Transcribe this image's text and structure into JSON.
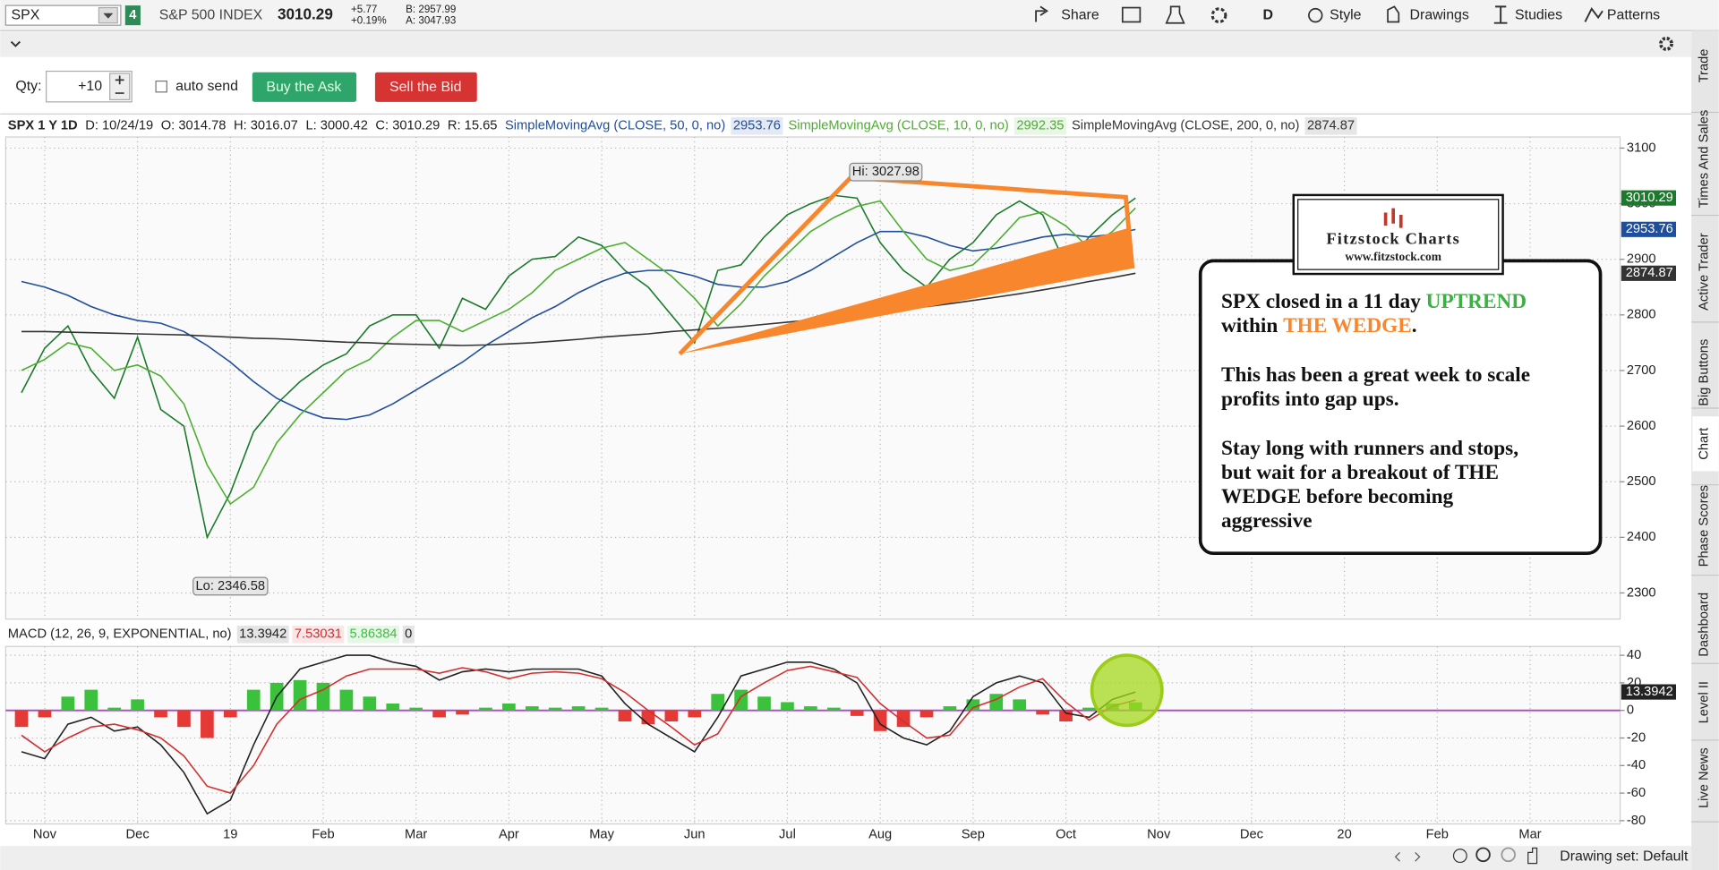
{
  "toolbar": {
    "symbol": "SPX",
    "link_badge": "4",
    "description": "S&P 500 INDEX",
    "last": "3010.29",
    "change": "+5.77",
    "change_pct": "+0.19%",
    "bid": "B: 2957.99",
    "ask": "A: 3047.93",
    "share": "Share",
    "aggregation": "D",
    "style": "Style",
    "drawings": "Drawings",
    "studies": "Studies",
    "patterns": "Patterns"
  },
  "order_bar": {
    "qty_label": "Qty:",
    "qty": "+10",
    "auto_send": "auto send",
    "buy": "Buy the Ask",
    "sell": "Sell the Bid"
  },
  "chart_data": [
    {
      "type": "line",
      "header": [
        "SPX 1 Y 1D",
        "D: 10/24/19",
        "O: 3014.78",
        "H: 3016.07",
        "L: 3000.42",
        "C: 3010.29",
        "R: 15.65"
      ],
      "high_label": "Hi: 3027.98",
      "low_label": "Lo: 2346.58",
      "x": [
        -0.25,
        0,
        0.25,
        0.5,
        0.75,
        1,
        1.25,
        1.5,
        1.75,
        2,
        2.25,
        2.5,
        2.75,
        3,
        3.25,
        3.5,
        3.75,
        4,
        4.25,
        4.5,
        4.75,
        5,
        5.25,
        5.5,
        5.75,
        6,
        6.25,
        6.5,
        6.75,
        7,
        7.25,
        7.5,
        7.75,
        8,
        8.25,
        8.5,
        8.75,
        9,
        9.25,
        9.5,
        9.75,
        10,
        10.25,
        10.5,
        10.75,
        11,
        11.25,
        11.5,
        11.75
      ],
      "xlim": [
        -0.42,
        16.97
      ],
      "xticks": [
        {
          "value": 0,
          "label": "Nov"
        },
        {
          "value": 1,
          "label": "Dec"
        },
        {
          "value": 2,
          "label": "19"
        },
        {
          "value": 3,
          "label": "Feb"
        },
        {
          "value": 4,
          "label": "Mar"
        },
        {
          "value": 5,
          "label": "Apr"
        },
        {
          "value": 6,
          "label": "May"
        },
        {
          "value": 7,
          "label": "Jun"
        },
        {
          "value": 8,
          "label": "Jul"
        },
        {
          "value": 9,
          "label": "Aug"
        },
        {
          "value": 10,
          "label": "Sep"
        },
        {
          "value": 11,
          "label": "Oct"
        },
        {
          "value": 12,
          "label": "Nov"
        },
        {
          "value": 13,
          "label": "Dec"
        },
        {
          "value": 14,
          "label": "20"
        },
        {
          "value": 15,
          "label": "Feb"
        },
        {
          "value": 16,
          "label": "Mar"
        }
      ],
      "ylim": [
        2253,
        3120
      ],
      "yticks": [
        3100,
        3000,
        2900,
        2800,
        2700,
        2600,
        2500,
        2400,
        2300
      ],
      "grid": true,
      "series": [
        {
          "color": "#1b7a2b",
          "axis_label": true,
          "values": [
            2660,
            2740,
            2780,
            2700,
            2650,
            2760,
            2630,
            2600,
            2400,
            2480,
            2590,
            2640,
            2680,
            2710,
            2730,
            2780,
            2800,
            2800,
            2740,
            2830,
            2810,
            2870,
            2900,
            2905,
            2940,
            2925,
            2880,
            2850,
            2800,
            2750,
            2880,
            2890,
            2940,
            2980,
            3000,
            3015,
            3010,
            2930,
            2880,
            2850,
            2900,
            2930,
            2980,
            3005,
            2980,
            2890,
            2940,
            2980,
            3010.29
          ]
        },
        {
          "name": "SimpleMovingAvg (CLOSE, 50, 0, no)",
          "color": "#1f4e9c",
          "axis_label": true,
          "values": [
            2860,
            2850,
            2835,
            2815,
            2800,
            2790,
            2785,
            2770,
            2745,
            2715,
            2680,
            2650,
            2630,
            2615,
            2612,
            2620,
            2640,
            2665,
            2690,
            2715,
            2745,
            2770,
            2795,
            2815,
            2840,
            2860,
            2875,
            2880,
            2880,
            2870,
            2855,
            2850,
            2850,
            2860,
            2880,
            2905,
            2930,
            2950,
            2950,
            2940,
            2925,
            2915,
            2920,
            2930,
            2940,
            2945,
            2940,
            2945,
            2953.76
          ]
        },
        {
          "name": "SimpleMovingAvg (CLOSE, 10, 0, no)",
          "color": "#4cae2f",
          "values": [
            2700,
            2720,
            2750,
            2740,
            2700,
            2710,
            2690,
            2640,
            2530,
            2460,
            2490,
            2570,
            2620,
            2660,
            2700,
            2720,
            2760,
            2790,
            2790,
            2770,
            2790,
            2810,
            2840,
            2880,
            2900,
            2920,
            2930,
            2900,
            2870,
            2830,
            2780,
            2820,
            2870,
            2910,
            2950,
            2975,
            2995,
            3005,
            2950,
            2900,
            2880,
            2890,
            2930,
            2975,
            2985,
            2960,
            2920,
            2950,
            2992.35
          ]
        },
        {
          "name": "SimpleMovingAvg (CLOSE, 200, 0, no)",
          "color": "#333333",
          "axis_label": true,
          "values": [
            2770,
            2770,
            2769,
            2768,
            2767,
            2766,
            2765,
            2764,
            2762,
            2760,
            2758,
            2757,
            2755,
            2753,
            2751,
            2750,
            2748,
            2747,
            2746,
            2745,
            2746,
            2748,
            2750,
            2753,
            2756,
            2760,
            2763,
            2766,
            2770,
            2773,
            2776,
            2779,
            2783,
            2787,
            2791,
            2795,
            2800,
            2805,
            2810,
            2815,
            2820,
            2826,
            2832,
            2838,
            2845,
            2852,
            2860,
            2867,
            2874.87
          ]
        }
      ]
    },
    {
      "type": "line",
      "title": "MACD (12, 26, 9, EXPONENTIAL, no)",
      "ylim": [
        -82.4,
        46.4
      ],
      "yticks": [
        40,
        20,
        0,
        -20,
        -40,
        -60,
        -80
      ],
      "grid": true,
      "zero_line": 0,
      "zero_color": "#a64ac9",
      "series": [
        {
          "color": "#222222",
          "axis_label": true,
          "values": [
            -30,
            -35,
            -10,
            -5,
            -15,
            -12,
            -25,
            -45,
            -75,
            -65,
            -25,
            10,
            30,
            35,
            40,
            40,
            35,
            32,
            22,
            28,
            30,
            28,
            30,
            30,
            30,
            25,
            5,
            -10,
            -20,
            -30,
            -5,
            25,
            30,
            35,
            35,
            30,
            20,
            -10,
            -20,
            -25,
            -15,
            10,
            20,
            25,
            20,
            -2,
            -5,
            8,
            13.3942
          ]
        },
        {
          "color": "#d32f2f",
          "values": [
            -18,
            -30,
            -20,
            -12,
            -10,
            -14,
            -20,
            -33,
            -55,
            -60,
            -40,
            -10,
            8,
            15,
            25,
            30,
            30,
            30,
            27,
            31,
            28,
            23,
            27,
            28,
            27,
            23,
            13,
            0,
            -12,
            -25,
            -17,
            10,
            20,
            29,
            32,
            28,
            24,
            5,
            -8,
            -20,
            -18,
            2,
            8,
            17,
            23,
            6,
            -7,
            3,
            7.53031
          ]
        },
        {
          "type": "bar",
          "color": "#3cc13c",
          "negative_color": "#e53935",
          "values": [
            -12,
            -5,
            10,
            15,
            2,
            8,
            -5,
            -12,
            -20,
            -5,
            15,
            20,
            22,
            20,
            15,
            10,
            5,
            2,
            -5,
            -3,
            2,
            5,
            3,
            2,
            3,
            2,
            -8,
            -10,
            -8,
            -5,
            12,
            15,
            10,
            6,
            3,
            2,
            -4,
            -15,
            -12,
            -5,
            3,
            8,
            12,
            8,
            -3,
            -8,
            2,
            5,
            5.86384
          ]
        }
      ]
    }
  ],
  "annotation": {
    "logo": {
      "title": "Fitzstock Charts",
      "url": "www.fitzstock.com"
    },
    "paragraphs": [
      [
        [
          {
            "text": "SPX closed in a 11 day "
          },
          {
            "text": "UPTREND",
            "color": "#3cb043"
          }
        ],
        [
          {
            "text": "within "
          },
          {
            "text": "THE WEDGE",
            "color": "#f7862d"
          },
          {
            "text": "."
          }
        ]
      ],
      [
        [
          {
            "text": "This has been a great week to scale"
          }
        ],
        [
          {
            "text": "profits into gap ups."
          }
        ]
      ],
      [
        [
          {
            "text": "Stay long with runners and stops,"
          }
        ],
        [
          {
            "text": "but wait for a breakout of THE"
          }
        ],
        [
          {
            "text": "WEDGE before becoming"
          }
        ],
        [
          {
            "text": "aggressive"
          }
        ]
      ]
    ]
  },
  "side_tabs": [
    "Trade",
    "Times And Sales",
    "Active Trader",
    "Big Buttons",
    "Chart",
    "Phase Scores",
    "Dashboard",
    "Level II",
    "Live News"
  ],
  "status_bar": {
    "drawing_set": "Drawing set: Default"
  }
}
